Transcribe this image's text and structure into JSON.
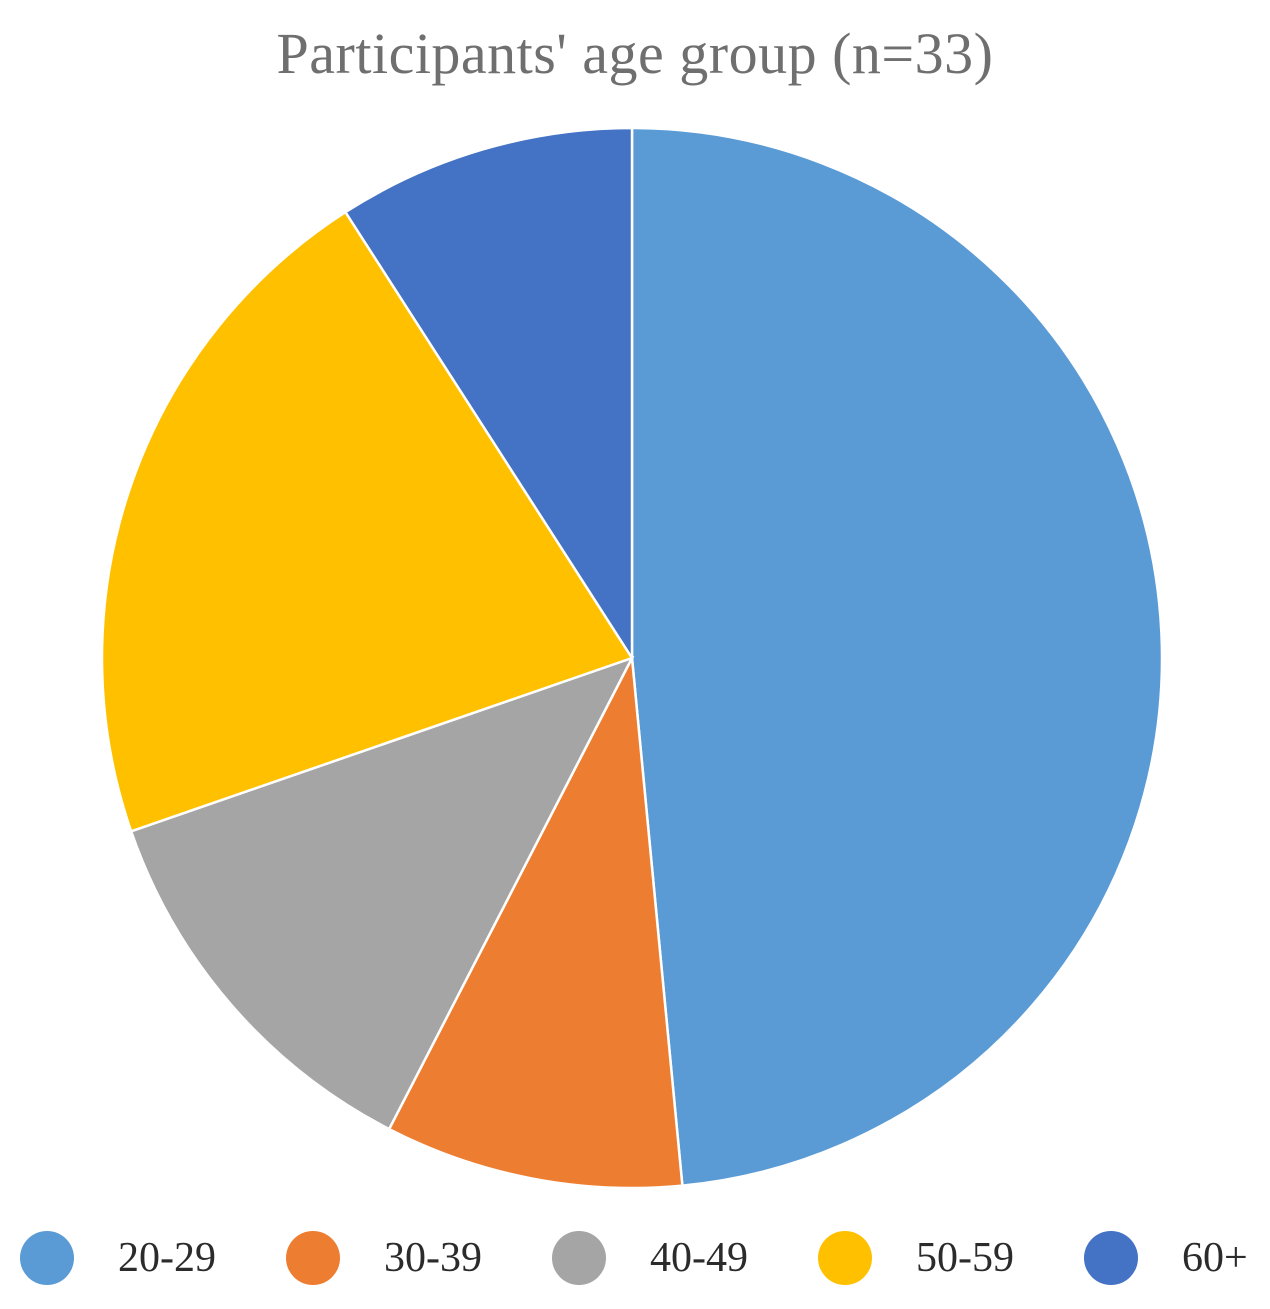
{
  "chart_data": {
    "type": "pie",
    "title": "Participants' age group (n=33)",
    "categories": [
      "20-29",
      "30-39",
      "40-49",
      "50-59",
      "60+"
    ],
    "values": [
      16,
      3,
      4,
      7,
      3
    ],
    "colors": [
      "#5b9bd5",
      "#ed7d31",
      "#a5a5a5",
      "#ffc000",
      "#4472c4"
    ],
    "start_angle_deg": 0,
    "direction": "clockwise",
    "legend_position": "bottom"
  }
}
